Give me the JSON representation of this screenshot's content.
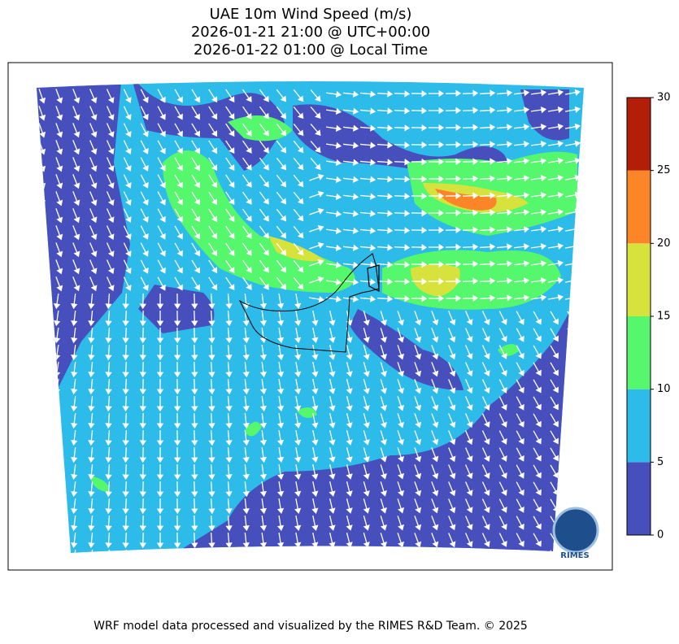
{
  "title": {
    "line1": "UAE 10m Wind Speed (m/s)",
    "line2": "2026-01-21 21:00 @ UTC+00:00",
    "line3": "2026-01-22 01:00 @ Local Time"
  },
  "colorbar": {
    "ticks": [
      0,
      5,
      10,
      15,
      20,
      25,
      30
    ],
    "colors": [
      "#474fbd",
      "#2dbbe9",
      "#55f76c",
      "#d7e33c",
      "#fc8527",
      "#b21e08"
    ]
  },
  "logo": {
    "text": "RIMES"
  },
  "footer": "WRF model data processed and visualized by the RIMES R&D Team. © 2025"
}
